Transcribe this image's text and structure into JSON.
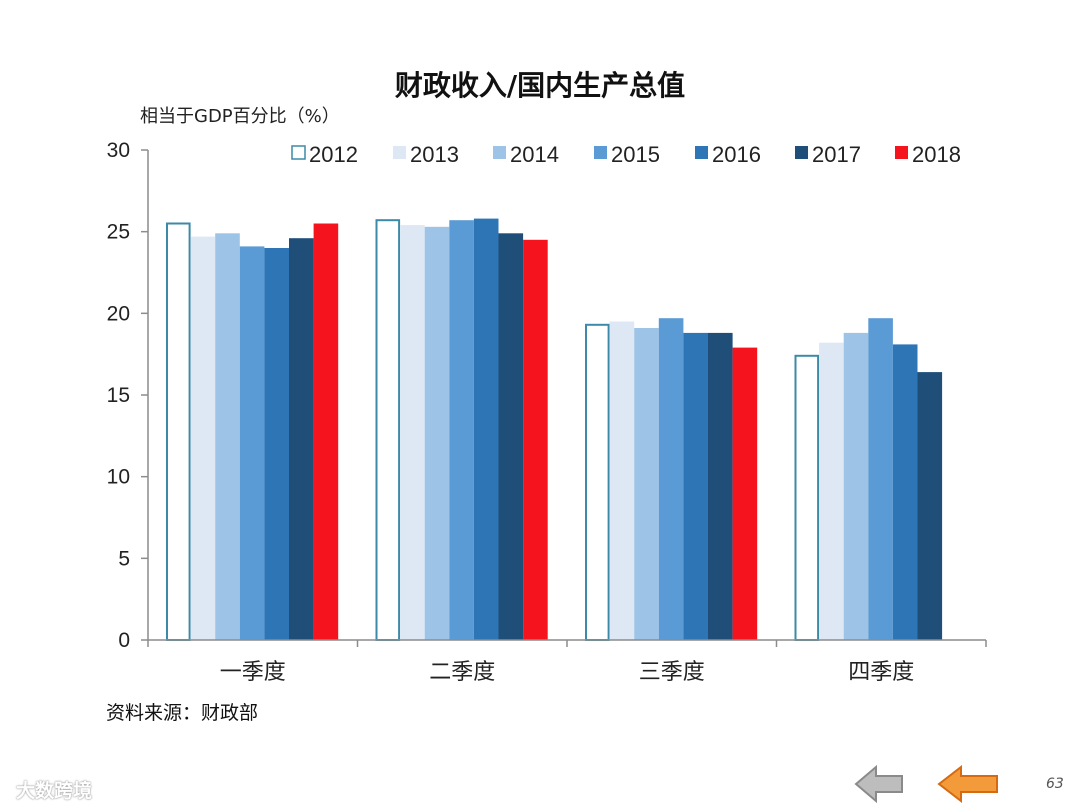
{
  "chart_data": {
    "type": "bar",
    "title": "财政收入/国内生产总值",
    "ylabel": "相当于GDP百分比（%）",
    "xlabel": "",
    "ylim": [
      0,
      30
    ],
    "yticks": [
      0,
      5,
      10,
      15,
      20,
      25,
      30
    ],
    "grid": false,
    "legend_position": "top-right",
    "categories": [
      "一季度",
      "二季度",
      "三季度",
      "四季度"
    ],
    "series": [
      {
        "name": "2012",
        "color": "#ffffff",
        "stroke": "#3d8aa8",
        "values": [
          25.5,
          25.7,
          19.3,
          17.4
        ]
      },
      {
        "name": "2013",
        "color": "#dde8f4",
        "values": [
          24.7,
          25.4,
          19.5,
          18.2
        ]
      },
      {
        "name": "2014",
        "color": "#9dc3e6",
        "values": [
          24.9,
          25.3,
          19.1,
          18.8
        ]
      },
      {
        "name": "2015",
        "color": "#5b9bd5",
        "values": [
          24.1,
          25.7,
          19.7,
          19.7
        ]
      },
      {
        "name": "2016",
        "color": "#2e75b6",
        "values": [
          24.0,
          25.8,
          18.8,
          18.1
        ]
      },
      {
        "name": "2017",
        "color": "#1f4e79",
        "values": [
          24.6,
          24.9,
          18.8,
          16.4
        ]
      },
      {
        "name": "2018",
        "color": "#f5141e",
        "values": [
          25.5,
          24.5,
          17.9,
          null
        ]
      }
    ]
  },
  "footer": {
    "source": "资料来源：财政部",
    "watermark": "大数跨境",
    "page_number": "63"
  }
}
